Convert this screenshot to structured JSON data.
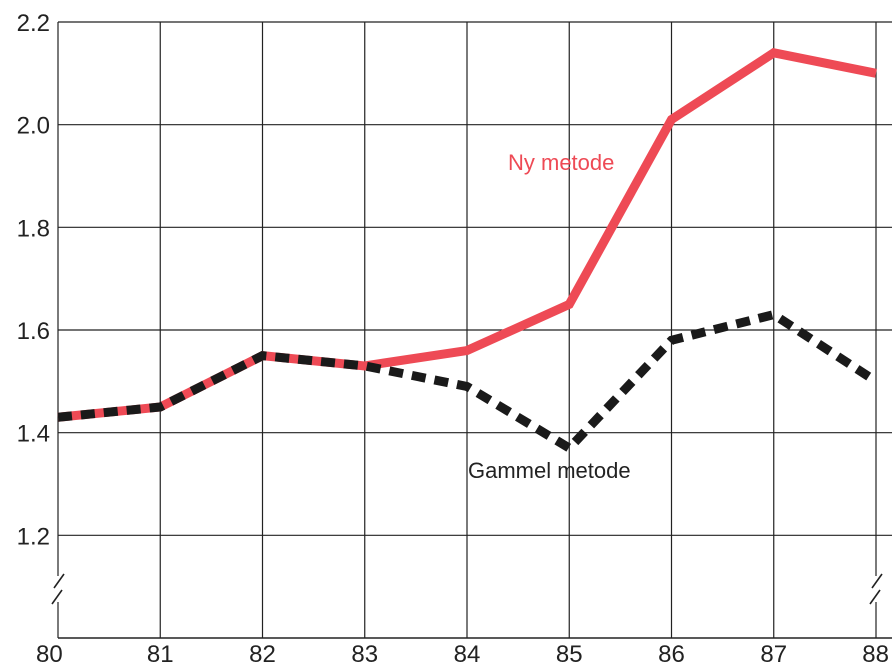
{
  "chart_data": {
    "type": "line",
    "title": "",
    "xlabel": "",
    "ylabel": "",
    "x": [
      "80",
      "81",
      "82",
      "83",
      "84",
      "85",
      "86",
      "87",
      "88"
    ],
    "ylim": [
      1.0,
      2.2
    ],
    "yticks": [
      "1.2",
      "1.4",
      "1.6",
      "1.8",
      "2.0",
      "2.2"
    ],
    "grid": true,
    "axis_break": true,
    "series": [
      {
        "name": "Ny metode",
        "color": "#ee4a55",
        "style": "solid",
        "values": [
          1.43,
          1.45,
          1.55,
          1.53,
          1.56,
          1.65,
          2.01,
          2.14,
          2.1
        ]
      },
      {
        "name": "Gammel metode",
        "color": "#1a1a1a",
        "style": "dashed",
        "values": [
          1.43,
          1.45,
          1.55,
          1.53,
          1.49,
          1.37,
          1.58,
          1.63,
          1.5
        ]
      }
    ]
  }
}
